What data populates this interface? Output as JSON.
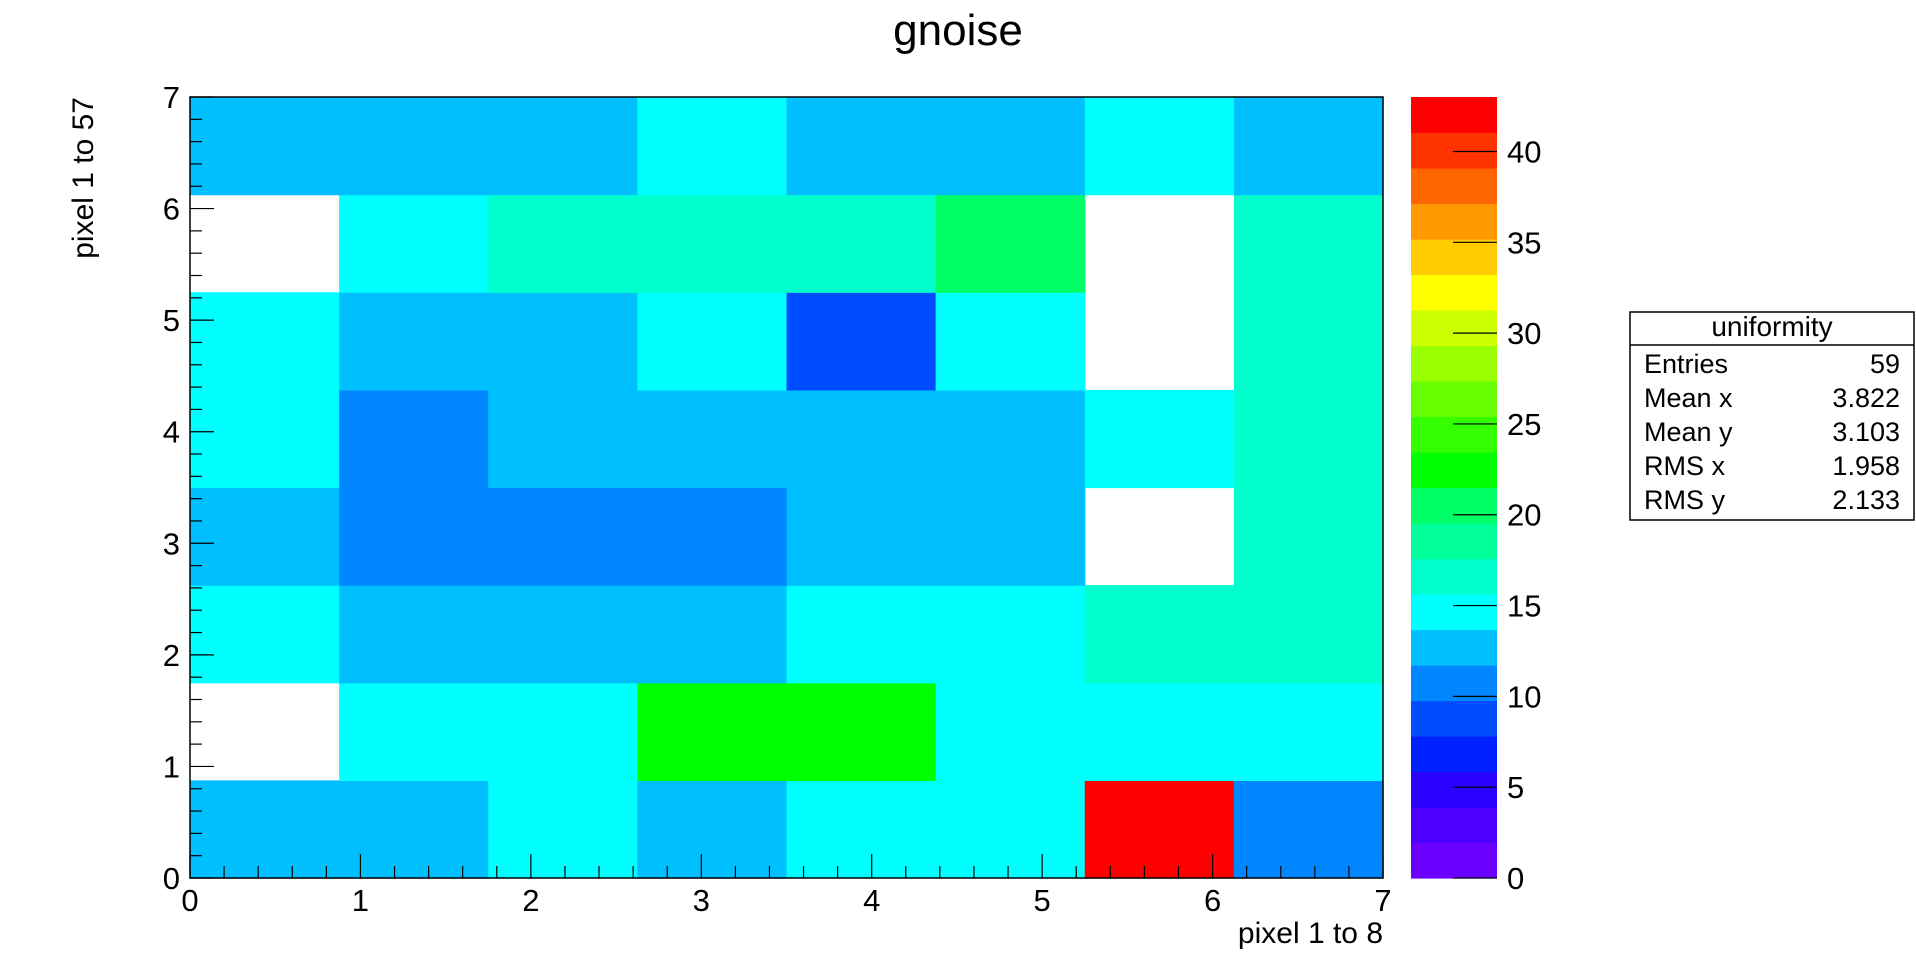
{
  "chart_data": {
    "type": "heatmap",
    "title": "gnoise",
    "xlabel": "pixel 1 to 8",
    "ylabel": "pixel 1 to 57",
    "xlim": [
      0,
      7
    ],
    "ylim": [
      0,
      7
    ],
    "x_ticks": [
      "0",
      "1",
      "2",
      "3",
      "4",
      "5",
      "6",
      "7"
    ],
    "y_ticks": [
      "0",
      "1",
      "2",
      "3",
      "4",
      "5",
      "6",
      "7"
    ],
    "zlim": [
      0,
      43
    ],
    "z_ticks": [
      "0",
      "5",
      "10",
      "15",
      "20",
      "25",
      "30",
      "35",
      "40"
    ],
    "nx": 8,
    "ny": 8,
    "grid": false,
    "cells_note_rows_from_bottom": true,
    "z_rows": [
      [
        12,
        12,
        14,
        12,
        14,
        14,
        42,
        10
      ],
      [
        0,
        14,
        14,
        22,
        22,
        14,
        14,
        14
      ],
      [
        14,
        12,
        12,
        12,
        14,
        14,
        17,
        17
      ],
      [
        12,
        10,
        10,
        10,
        12,
        12,
        0,
        17
      ],
      [
        14,
        10,
        12,
        12,
        12,
        12,
        14,
        17
      ],
      [
        14,
        12,
        12,
        14,
        8,
        14,
        0,
        17
      ],
      [
        0,
        14,
        17,
        17,
        17,
        21,
        0,
        17
      ],
      [
        12,
        12,
        12,
        14,
        12,
        12,
        14,
        12
      ]
    ],
    "palette": [
      "#6a00ff",
      "#4d00ff",
      "#2a00ff",
      "#0021ff",
      "#004dff",
      "#0087ff",
      "#00bfff",
      "#00ffff",
      "#00ffcc",
      "#00ff99",
      "#00ff66",
      "#00ff00",
      "#33ff00",
      "#66ff00",
      "#99ff00",
      "#ccff00",
      "#ffff00",
      "#ffcc00",
      "#ff9900",
      "#ff6600",
      "#ff3300",
      "#ff0000"
    ],
    "stats_box": {
      "title": "uniformity",
      "rows": [
        {
          "label": "Entries",
          "value": "59"
        },
        {
          "label": "Mean x",
          "value": "3.822"
        },
        {
          "label": "Mean y",
          "value": "3.103"
        },
        {
          "label": "RMS x",
          "value": "1.958"
        },
        {
          "label": "RMS y",
          "value": "2.133"
        }
      ]
    }
  }
}
